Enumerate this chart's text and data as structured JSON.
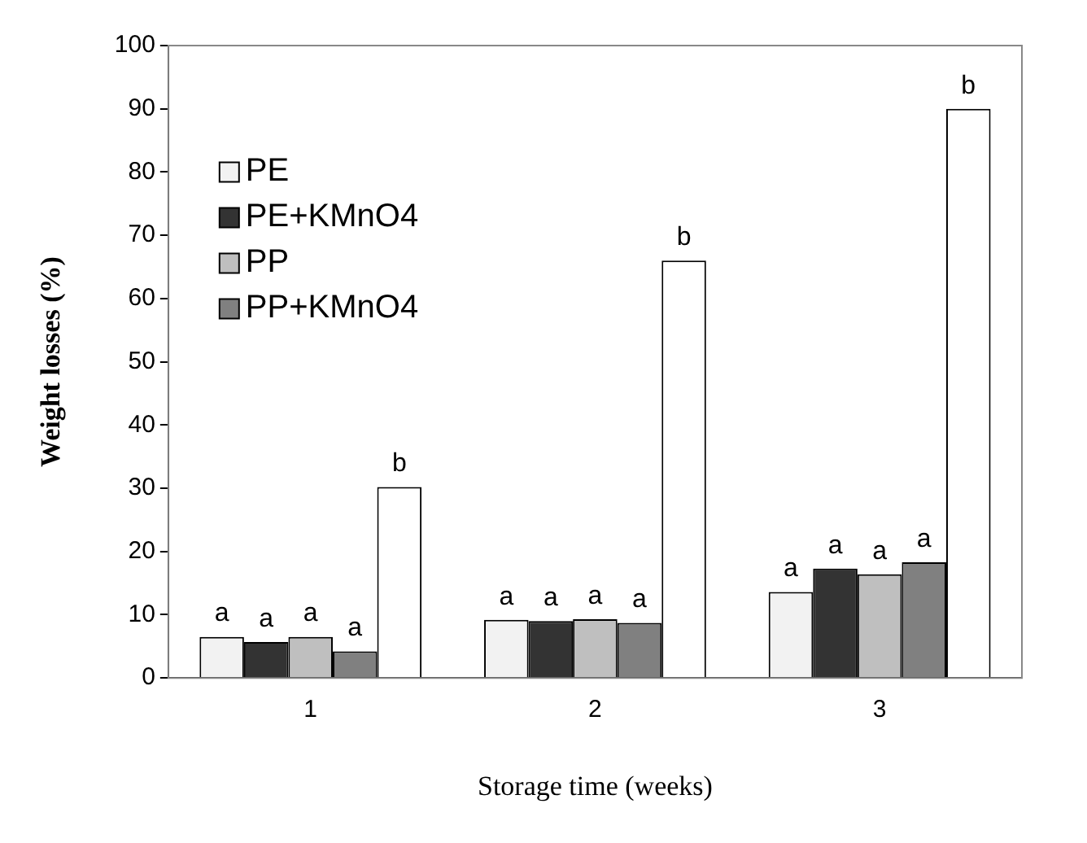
{
  "chart_data": {
    "type": "bar",
    "xlabel": "Storage time (weeks)",
    "ylabel": "Weight losses (%)",
    "categories": [
      "1",
      "2",
      "3"
    ],
    "series": [
      {
        "name": "PE",
        "color": "#f2f2f2",
        "values": [
          6.5,
          9.2,
          13.6
        ],
        "value_labels": [
          "a",
          "a",
          "a"
        ]
      },
      {
        "name": "PE+KMnO4",
        "color": "#333333",
        "values": [
          5.7,
          9.0,
          17.3
        ],
        "value_labels": [
          "a",
          "a",
          "a"
        ]
      },
      {
        "name": "PP",
        "color": "#bfbfbf",
        "values": [
          6.5,
          9.3,
          16.4
        ],
        "value_labels": [
          "a",
          "a",
          "a"
        ]
      },
      {
        "name": "PP+KMnO4",
        "color": "#808080",
        "values": [
          4.2,
          8.7,
          18.3
        ],
        "value_labels": [
          "a",
          "a",
          "a"
        ]
      },
      {
        "color": "#ffffff",
        "values": [
          30.2,
          66,
          90
        ],
        "value_labels": [
          "b",
          "b",
          "b"
        ]
      }
    ],
    "ylim": [
      0,
      100
    ],
    "yticks": [
      0,
      10,
      20,
      30,
      40,
      50,
      60,
      70,
      80,
      90,
      100
    ],
    "grid": false,
    "legend": "top left"
  }
}
